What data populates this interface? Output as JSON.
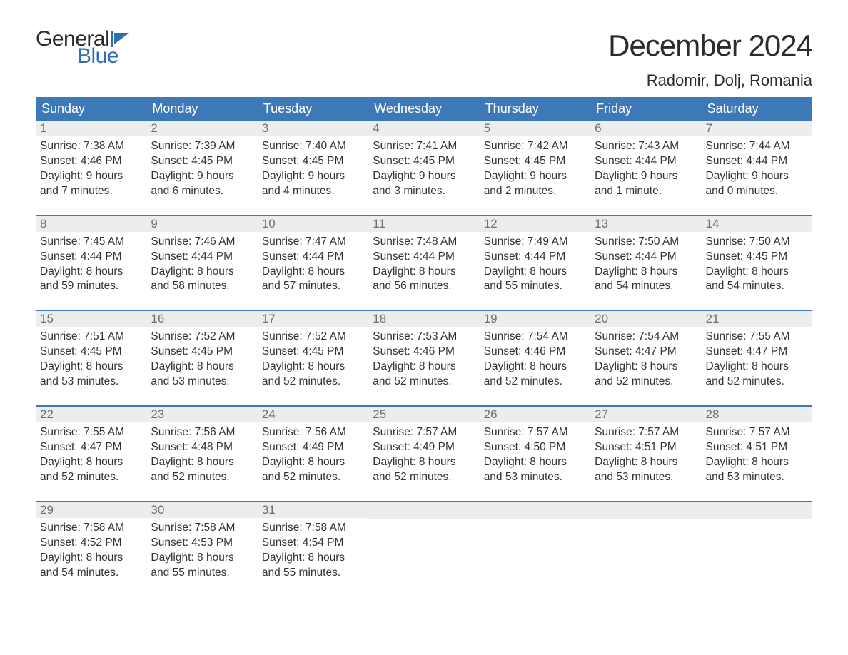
{
  "brand": {
    "word1": "General",
    "word2": "Blue"
  },
  "title": "December 2024",
  "location": "Radomir, Dolj, Romania",
  "colors": {
    "header_bg": "#3d79b6",
    "header_text": "#ffffff",
    "daynum_bg": "#eceded",
    "daynum_text": "#707070",
    "body_text": "#333333",
    "brand_blue": "#2f6fb0",
    "page_bg": "#ffffff",
    "week_border": "#3d79b6"
  },
  "typography": {
    "title_fontsize": 42,
    "location_fontsize": 22,
    "dayheader_fontsize": 18,
    "daynum_fontsize": 17,
    "body_fontsize": 15.5,
    "font_family": "Arial"
  },
  "day_headers": [
    "Sunday",
    "Monday",
    "Tuesday",
    "Wednesday",
    "Thursday",
    "Friday",
    "Saturday"
  ],
  "weeks": [
    [
      {
        "n": "1",
        "sunrise": "Sunrise: 7:38 AM",
        "sunset": "Sunset: 4:46 PM",
        "d1": "Daylight: 9 hours",
        "d2": "and 7 minutes."
      },
      {
        "n": "2",
        "sunrise": "Sunrise: 7:39 AM",
        "sunset": "Sunset: 4:45 PM",
        "d1": "Daylight: 9 hours",
        "d2": "and 6 minutes."
      },
      {
        "n": "3",
        "sunrise": "Sunrise: 7:40 AM",
        "sunset": "Sunset: 4:45 PM",
        "d1": "Daylight: 9 hours",
        "d2": "and 4 minutes."
      },
      {
        "n": "4",
        "sunrise": "Sunrise: 7:41 AM",
        "sunset": "Sunset: 4:45 PM",
        "d1": "Daylight: 9 hours",
        "d2": "and 3 minutes."
      },
      {
        "n": "5",
        "sunrise": "Sunrise: 7:42 AM",
        "sunset": "Sunset: 4:45 PM",
        "d1": "Daylight: 9 hours",
        "d2": "and 2 minutes."
      },
      {
        "n": "6",
        "sunrise": "Sunrise: 7:43 AM",
        "sunset": "Sunset: 4:44 PM",
        "d1": "Daylight: 9 hours",
        "d2": "and 1 minute."
      },
      {
        "n": "7",
        "sunrise": "Sunrise: 7:44 AM",
        "sunset": "Sunset: 4:44 PM",
        "d1": "Daylight: 9 hours",
        "d2": "and 0 minutes."
      }
    ],
    [
      {
        "n": "8",
        "sunrise": "Sunrise: 7:45 AM",
        "sunset": "Sunset: 4:44 PM",
        "d1": "Daylight: 8 hours",
        "d2": "and 59 minutes."
      },
      {
        "n": "9",
        "sunrise": "Sunrise: 7:46 AM",
        "sunset": "Sunset: 4:44 PM",
        "d1": "Daylight: 8 hours",
        "d2": "and 58 minutes."
      },
      {
        "n": "10",
        "sunrise": "Sunrise: 7:47 AM",
        "sunset": "Sunset: 4:44 PM",
        "d1": "Daylight: 8 hours",
        "d2": "and 57 minutes."
      },
      {
        "n": "11",
        "sunrise": "Sunrise: 7:48 AM",
        "sunset": "Sunset: 4:44 PM",
        "d1": "Daylight: 8 hours",
        "d2": "and 56 minutes."
      },
      {
        "n": "12",
        "sunrise": "Sunrise: 7:49 AM",
        "sunset": "Sunset: 4:44 PM",
        "d1": "Daylight: 8 hours",
        "d2": "and 55 minutes."
      },
      {
        "n": "13",
        "sunrise": "Sunrise: 7:50 AM",
        "sunset": "Sunset: 4:44 PM",
        "d1": "Daylight: 8 hours",
        "d2": "and 54 minutes."
      },
      {
        "n": "14",
        "sunrise": "Sunrise: 7:50 AM",
        "sunset": "Sunset: 4:45 PM",
        "d1": "Daylight: 8 hours",
        "d2": "and 54 minutes."
      }
    ],
    [
      {
        "n": "15",
        "sunrise": "Sunrise: 7:51 AM",
        "sunset": "Sunset: 4:45 PM",
        "d1": "Daylight: 8 hours",
        "d2": "and 53 minutes."
      },
      {
        "n": "16",
        "sunrise": "Sunrise: 7:52 AM",
        "sunset": "Sunset: 4:45 PM",
        "d1": "Daylight: 8 hours",
        "d2": "and 53 minutes."
      },
      {
        "n": "17",
        "sunrise": "Sunrise: 7:52 AM",
        "sunset": "Sunset: 4:45 PM",
        "d1": "Daylight: 8 hours",
        "d2": "and 52 minutes."
      },
      {
        "n": "18",
        "sunrise": "Sunrise: 7:53 AM",
        "sunset": "Sunset: 4:46 PM",
        "d1": "Daylight: 8 hours",
        "d2": "and 52 minutes."
      },
      {
        "n": "19",
        "sunrise": "Sunrise: 7:54 AM",
        "sunset": "Sunset: 4:46 PM",
        "d1": "Daylight: 8 hours",
        "d2": "and 52 minutes."
      },
      {
        "n": "20",
        "sunrise": "Sunrise: 7:54 AM",
        "sunset": "Sunset: 4:47 PM",
        "d1": "Daylight: 8 hours",
        "d2": "and 52 minutes."
      },
      {
        "n": "21",
        "sunrise": "Sunrise: 7:55 AM",
        "sunset": "Sunset: 4:47 PM",
        "d1": "Daylight: 8 hours",
        "d2": "and 52 minutes."
      }
    ],
    [
      {
        "n": "22",
        "sunrise": "Sunrise: 7:55 AM",
        "sunset": "Sunset: 4:47 PM",
        "d1": "Daylight: 8 hours",
        "d2": "and 52 minutes."
      },
      {
        "n": "23",
        "sunrise": "Sunrise: 7:56 AM",
        "sunset": "Sunset: 4:48 PM",
        "d1": "Daylight: 8 hours",
        "d2": "and 52 minutes."
      },
      {
        "n": "24",
        "sunrise": "Sunrise: 7:56 AM",
        "sunset": "Sunset: 4:49 PM",
        "d1": "Daylight: 8 hours",
        "d2": "and 52 minutes."
      },
      {
        "n": "25",
        "sunrise": "Sunrise: 7:57 AM",
        "sunset": "Sunset: 4:49 PM",
        "d1": "Daylight: 8 hours",
        "d2": "and 52 minutes."
      },
      {
        "n": "26",
        "sunrise": "Sunrise: 7:57 AM",
        "sunset": "Sunset: 4:50 PM",
        "d1": "Daylight: 8 hours",
        "d2": "and 53 minutes."
      },
      {
        "n": "27",
        "sunrise": "Sunrise: 7:57 AM",
        "sunset": "Sunset: 4:51 PM",
        "d1": "Daylight: 8 hours",
        "d2": "and 53 minutes."
      },
      {
        "n": "28",
        "sunrise": "Sunrise: 7:57 AM",
        "sunset": "Sunset: 4:51 PM",
        "d1": "Daylight: 8 hours",
        "d2": "and 53 minutes."
      }
    ],
    [
      {
        "n": "29",
        "sunrise": "Sunrise: 7:58 AM",
        "sunset": "Sunset: 4:52 PM",
        "d1": "Daylight: 8 hours",
        "d2": "and 54 minutes."
      },
      {
        "n": "30",
        "sunrise": "Sunrise: 7:58 AM",
        "sunset": "Sunset: 4:53 PM",
        "d1": "Daylight: 8 hours",
        "d2": "and 55 minutes."
      },
      {
        "n": "31",
        "sunrise": "Sunrise: 7:58 AM",
        "sunset": "Sunset: 4:54 PM",
        "d1": "Daylight: 8 hours",
        "d2": "and 55 minutes."
      },
      null,
      null,
      null,
      null
    ]
  ]
}
